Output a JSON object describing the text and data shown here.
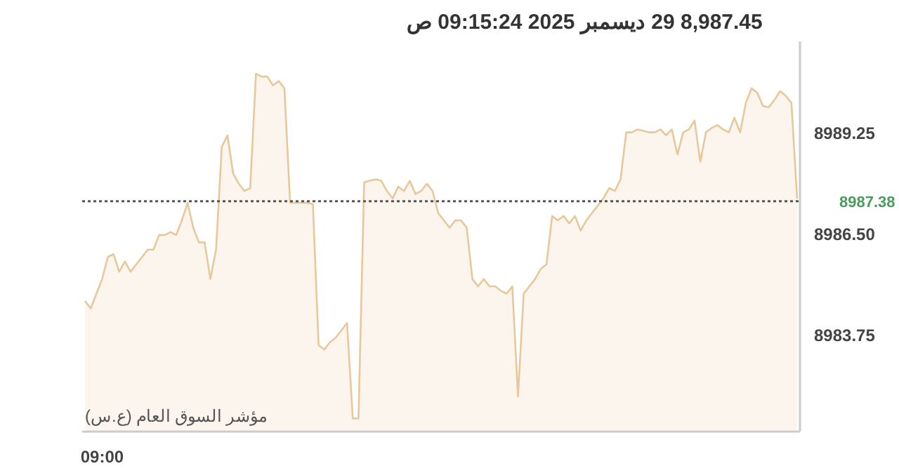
{
  "chart_data": {
    "type": "area",
    "title": "8,987.45   29 ديسمبر 2025   09:15:24 ص",
    "annotations": [
      "مؤشر السوق العام (ع.س)"
    ],
    "color": "#e8c89a",
    "categories": [
      null,
      null,
      null,
      "09:00",
      null,
      null,
      null,
      null,
      null,
      null,
      null,
      null,
      null,
      null,
      null,
      null,
      null,
      null,
      null,
      null,
      null,
      null,
      null,
      null,
      null,
      null,
      null,
      null,
      null,
      null,
      null,
      null,
      null,
      null,
      null,
      null,
      null,
      null,
      null,
      null,
      null,
      null,
      null,
      null,
      null,
      null,
      null,
      null,
      null,
      null,
      null,
      null,
      null,
      null,
      null,
      null,
      null,
      null,
      null,
      null,
      null,
      null,
      null,
      null,
      null,
      null,
      null,
      null,
      null,
      null,
      null,
      null,
      null,
      null,
      null,
      null,
      null,
      null,
      null,
      null,
      null,
      null,
      null,
      null,
      null,
      null,
      null,
      null,
      null,
      null,
      null,
      null,
      null,
      null,
      null,
      null,
      null,
      null,
      null,
      null,
      null,
      null,
      null,
      null,
      null,
      null,
      null,
      null,
      null,
      null,
      null,
      null,
      null,
      null,
      null,
      null,
      null,
      null,
      null,
      null,
      null,
      null,
      null,
      null,
      null,
      null
    ],
    "values": [
      8984.66,
      8984.46,
      8984.86,
      8985.26,
      8985.86,
      8985.94,
      8985.46,
      8985.74,
      8985.46,
      8985.66,
      8985.86,
      8986.06,
      8986.06,
      8986.46,
      8986.46,
      8986.54,
      8986.46,
      8986.86,
      8987.34,
      8986.66,
      8986.26,
      8986.26,
      8985.26,
      8986.06,
      8988.86,
      8989.18,
      8988.14,
      8987.86,
      8987.66,
      8987.74,
      8990.86,
      8990.78,
      8990.78,
      8990.54,
      8990.66,
      8990.46,
      8987.34,
      8987.34,
      8987.34,
      8987.34,
      8987.3,
      8983.46,
      8983.34,
      8983.54,
      8983.66,
      8983.86,
      8984.06,
      8981.46,
      8981.46,
      8987.9,
      8987.94,
      8987.98,
      8987.94,
      8987.66,
      8987.46,
      8987.78,
      8987.66,
      8987.94,
      8987.58,
      8987.66,
      8987.86,
      8987.66,
      8987.06,
      8986.86,
      8986.66,
      8986.86,
      8986.86,
      8986.66,
      8985.26,
      8985.06,
      8985.26,
      8985.06,
      8985.06,
      8984.94,
      8984.86,
      8985.06,
      8982.06,
      8984.86,
      8985.06,
      8985.26,
      8985.54,
      8985.66,
      8986.98,
      8986.86,
      8986.98,
      8986.78,
      8986.98,
      8986.58,
      8986.86,
      8987.06,
      8987.26,
      8987.46,
      8987.74,
      8987.66,
      8987.98,
      8989.26,
      8989.26,
      8989.34,
      8989.3,
      8989.26,
      8989.26,
      8989.34,
      8989.18,
      8989.34,
      8988.66,
      8989.26,
      8989.34,
      8989.58,
      8988.46,
      8989.26,
      8989.38,
      8989.46,
      8989.34,
      8989.26,
      8989.66,
      8989.26,
      8990.06,
      8990.46,
      8990.34,
      8989.98,
      8989.94,
      8990.14,
      8990.38,
      8990.26,
      8990.06,
      8987.45
    ],
    "ylim": [
      8981.1,
      8991.74
    ],
    "yticks": [
      {
        "value": 8983.75,
        "label": "8983.75"
      },
      {
        "value": 8986.5,
        "label": "8986.50"
      },
      {
        "value": 8989.25,
        "label": "8989.25"
      }
    ],
    "ref_lines": [
      {
        "axis": "y",
        "value": 8987.38,
        "label": "8987.38",
        "line_style": "dotted"
      }
    ]
  }
}
